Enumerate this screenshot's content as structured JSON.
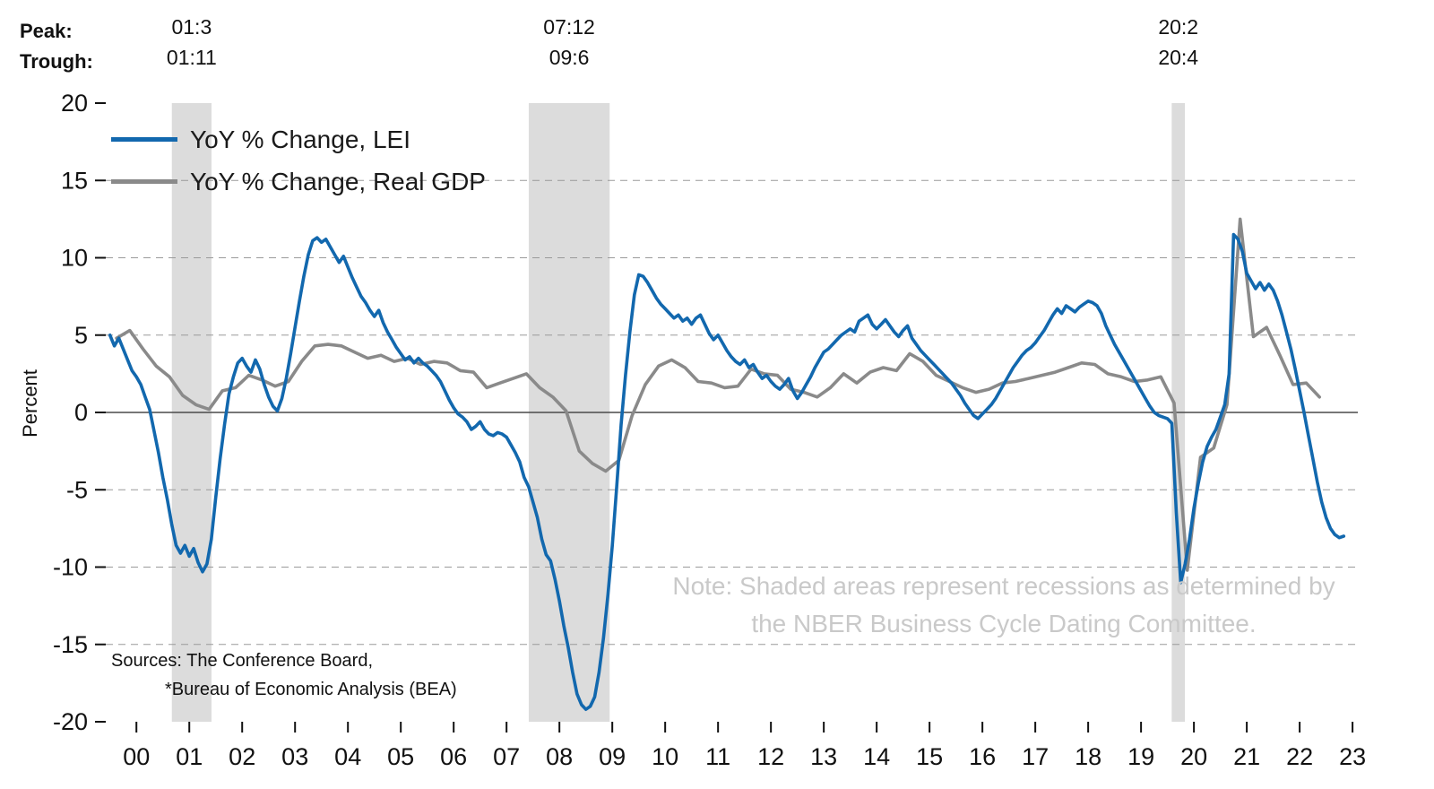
{
  "header": {
    "peak_label": "Peak:",
    "trough_label": "Trough:"
  },
  "note": {
    "line1": "Note: Shaded areas represent recessions as determined by",
    "line2": "the NBER Business Cycle Dating Committee."
  },
  "sources": {
    "line1": "Sources: The Conference Board,",
    "line2": "*Bureau of Economic Analysis (BEA)"
  },
  "colors": {
    "lei": "#1268ae",
    "gdp": "#8a8a8a",
    "recession": "#dcdcdc",
    "grid": "#9a9a9a",
    "zero_line": "#4a4a4a",
    "axis_text": "#111111",
    "note_text": "#c9c9c9"
  },
  "chart_data": {
    "type": "line",
    "title": "",
    "xlabel": "",
    "ylabel": "Percent",
    "ylim": [
      -20,
      20
    ],
    "yticks": [
      20,
      15,
      10,
      5,
      0,
      -5,
      -10,
      -15,
      -20
    ],
    "xlim": [
      1999.92,
      2023.6
    ],
    "x_tick_labels": [
      "00",
      "01",
      "02",
      "03",
      "04",
      "05",
      "06",
      "07",
      "08",
      "09",
      "10",
      "11",
      "12",
      "13",
      "14",
      "15",
      "16",
      "17",
      "18",
      "19",
      "20",
      "21",
      "22",
      "23"
    ],
    "grid": "dashed horizontal gridlines, solid zero line",
    "legend_position": "top-left",
    "recessions": [
      {
        "from": 2001.17,
        "to": 2001.92,
        "peak": "01:3",
        "trough": "01:11"
      },
      {
        "from": 2007.92,
        "to": 2009.45,
        "peak": "07:12",
        "trough": "09:6"
      },
      {
        "from": 2020.08,
        "to": 2020.33,
        "peak": "20:2",
        "trough": "20:4"
      }
    ],
    "series": [
      {
        "name": "YoY % Change, LEI",
        "color": "#1268ae",
        "frequency": "monthly",
        "start": 2000.0,
        "step": 0.0833333,
        "values": [
          5.0,
          4.3,
          4.8,
          4.1,
          3.4,
          2.7,
          2.3,
          1.8,
          1.0,
          0.2,
          -1.2,
          -2.6,
          -4.2,
          -5.6,
          -7.2,
          -8.6,
          -9.1,
          -8.6,
          -9.3,
          -8.8,
          -9.7,
          -10.3,
          -9.8,
          -8.2,
          -5.5,
          -3.0,
          -0.8,
          1.2,
          2.3,
          3.2,
          3.5,
          3.0,
          2.6,
          3.4,
          2.8,
          1.8,
          1.0,
          0.4,
          0.1,
          0.9,
          2.2,
          3.8,
          5.5,
          7.2,
          8.8,
          10.2,
          11.1,
          11.3,
          11.0,
          11.2,
          10.7,
          10.2,
          9.7,
          10.1,
          9.4,
          8.7,
          8.1,
          7.5,
          7.1,
          6.6,
          6.2,
          6.6,
          5.8,
          5.2,
          4.7,
          4.2,
          3.8,
          3.4,
          3.6,
          3.2,
          3.5,
          3.2,
          3.0,
          2.7,
          2.4,
          2.0,
          1.4,
          0.8,
          0.3,
          -0.1,
          -0.3,
          -0.6,
          -1.1,
          -0.9,
          -0.6,
          -1.1,
          -1.4,
          -1.5,
          -1.3,
          -1.4,
          -1.6,
          -2.1,
          -2.6,
          -3.2,
          -4.2,
          -4.8,
          -5.8,
          -6.8,
          -8.2,
          -9.2,
          -9.6,
          -10.8,
          -12.2,
          -13.8,
          -15.2,
          -16.8,
          -18.2,
          -18.9,
          -19.2,
          -19.0,
          -18.4,
          -16.8,
          -14.6,
          -11.8,
          -8.6,
          -4.8,
          -0.8,
          2.4,
          5.2,
          7.6,
          8.9,
          8.8,
          8.4,
          7.9,
          7.4,
          7.0,
          6.7,
          6.4,
          6.1,
          6.3,
          5.9,
          6.1,
          5.7,
          6.1,
          6.3,
          5.7,
          5.1,
          4.7,
          5.0,
          4.5,
          4.0,
          3.6,
          3.3,
          3.1,
          3.4,
          2.9,
          3.1,
          2.6,
          2.2,
          2.4,
          2.0,
          1.7,
          1.5,
          1.8,
          2.2,
          1.4,
          0.9,
          1.3,
          1.8,
          2.3,
          2.9,
          3.4,
          3.9,
          4.1,
          4.4,
          4.7,
          5.0,
          5.2,
          5.4,
          5.2,
          5.9,
          6.1,
          6.3,
          5.7,
          5.4,
          5.7,
          6.0,
          5.6,
          5.2,
          4.9,
          5.3,
          5.6,
          4.8,
          4.4,
          4.0,
          3.7,
          3.4,
          3.1,
          2.8,
          2.5,
          2.2,
          1.9,
          1.5,
          1.1,
          0.6,
          0.2,
          -0.2,
          -0.4,
          -0.1,
          0.2,
          0.5,
          0.9,
          1.4,
          1.9,
          2.4,
          2.9,
          3.3,
          3.7,
          4.0,
          4.2,
          4.5,
          4.9,
          5.3,
          5.8,
          6.3,
          6.7,
          6.4,
          6.9,
          6.7,
          6.5,
          6.8,
          7.0,
          7.2,
          7.1,
          6.9,
          6.4,
          5.6,
          5.0,
          4.4,
          3.9,
          3.4,
          2.9,
          2.4,
          1.9,
          1.4,
          0.9,
          0.4,
          0.0,
          -0.2,
          -0.3,
          -0.4,
          -0.7,
          -6.5,
          -11.0,
          -9.8,
          -8.2,
          -6.2,
          -4.6,
          -3.2,
          -2.2,
          -1.6,
          -1.1,
          -0.3,
          0.5,
          2.5,
          11.5,
          11.2,
          10.4,
          9.0,
          8.5,
          8.0,
          8.4,
          7.9,
          8.3,
          7.9,
          7.2,
          6.3,
          5.2,
          4.1,
          2.8,
          1.4,
          0.0,
          -1.5,
          -3.0,
          -4.5,
          -5.8,
          -6.8,
          -7.5,
          -7.9,
          -8.1,
          -8.0
        ]
      },
      {
        "name": "YoY % Change, Real GDP",
        "color": "#8a8a8a",
        "frequency": "quarterly",
        "start": 2000.125,
        "step": 0.25,
        "values": [
          4.8,
          5.3,
          4.1,
          3.0,
          2.3,
          1.1,
          0.5,
          0.2,
          1.4,
          1.6,
          2.4,
          2.1,
          1.7,
          2.0,
          3.3,
          4.3,
          4.4,
          4.3,
          3.9,
          3.5,
          3.7,
          3.3,
          3.5,
          3.1,
          3.3,
          3.2,
          2.7,
          2.6,
          1.6,
          1.9,
          2.2,
          2.5,
          1.6,
          1.0,
          0.1,
          -2.5,
          -3.3,
          -3.8,
          -3.1,
          -0.2,
          1.8,
          3.0,
          3.4,
          2.9,
          2.0,
          1.9,
          1.6,
          1.7,
          2.8,
          2.5,
          2.4,
          1.5,
          1.3,
          1.0,
          1.6,
          2.5,
          1.9,
          2.6,
          2.9,
          2.7,
          3.8,
          3.3,
          2.4,
          2.0,
          1.6,
          1.3,
          1.5,
          1.9,
          2.0,
          2.2,
          2.4,
          2.6,
          2.9,
          3.2,
          3.1,
          2.5,
          2.3,
          2.0,
          2.1,
          2.3,
          0.6,
          -10.2,
          -2.9,
          -2.3,
          0.5,
          12.5,
          4.9,
          5.5,
          3.7,
          1.8,
          1.9,
          1.0
        ]
      }
    ]
  }
}
